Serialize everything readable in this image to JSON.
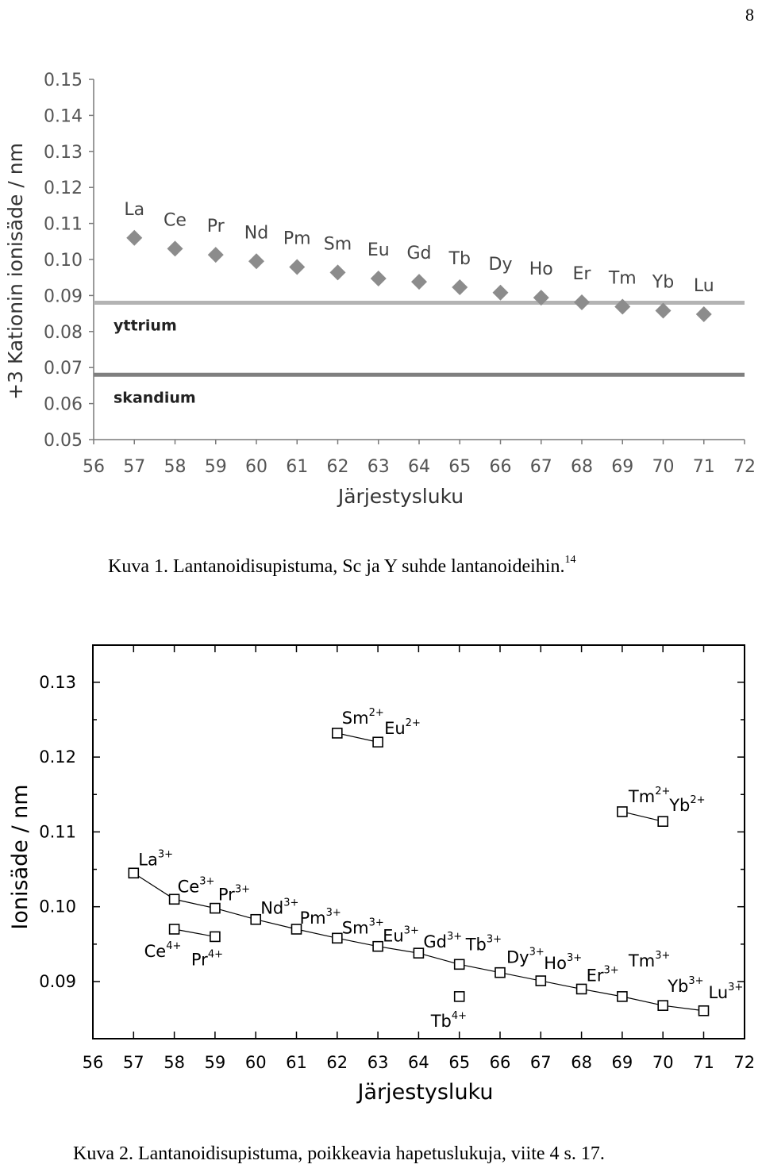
{
  "page_number": "8",
  "figure1": {
    "caption": "Kuva 1. Lantanoidisupistuma, Sc ja Y suhde lantanoideihin.",
    "caption_ref": "14"
  },
  "figure2": {
    "caption": "Kuva 2. Lantanoidisupistuma, poikkeavia hapetuslukuja, viite 4 s. 17."
  },
  "chart_data": [
    {
      "type": "scatter",
      "xlabel": "Järjestysluku",
      "ylabel": "+3 Kationin ionisäde / nm",
      "xlim": [
        56,
        72
      ],
      "ylim": [
        0.05,
        0.15
      ],
      "x_ticks": [
        "56",
        "57",
        "58",
        "59",
        "60",
        "61",
        "62",
        "63",
        "64",
        "65",
        "66",
        "67",
        "68",
        "69",
        "70",
        "71",
        "72"
      ],
      "y_ticks": [
        "0.05",
        "0.06",
        "0.07",
        "0.08",
        "0.09",
        "0.10",
        "0.11",
        "0.12",
        "0.13",
        "0.14",
        "0.15"
      ],
      "grid": false,
      "marker": "diamond",
      "marker_color": "#8c8c8c",
      "points": [
        {
          "label": "La",
          "x": 57,
          "y": 0.106
        },
        {
          "label": "Ce",
          "x": 58,
          "y": 0.103
        },
        {
          "label": "Pr",
          "x": 59,
          "y": 0.1013
        },
        {
          "label": "Nd",
          "x": 60,
          "y": 0.0995
        },
        {
          "label": "Pm",
          "x": 61,
          "y": 0.0979
        },
        {
          "label": "Sm",
          "x": 62,
          "y": 0.0964
        },
        {
          "label": "Eu",
          "x": 63,
          "y": 0.0947
        },
        {
          "label": "Gd",
          "x": 64,
          "y": 0.0938
        },
        {
          "label": "Tb",
          "x": 65,
          "y": 0.0923
        },
        {
          "label": "Dy",
          "x": 66,
          "y": 0.0908
        },
        {
          "label": "Ho",
          "x": 67,
          "y": 0.0894
        },
        {
          "label": "Er",
          "x": 68,
          "y": 0.0881
        },
        {
          "label": "Tm",
          "x": 69,
          "y": 0.0869
        },
        {
          "label": "Yb",
          "x": 70,
          "y": 0.0858
        },
        {
          "label": "Lu",
          "x": 71,
          "y": 0.0848
        }
      ],
      "reference_lines": [
        {
          "label": "yttrium",
          "y": 0.088,
          "color": "#b3b3b3"
        },
        {
          "label": "skandium",
          "y": 0.068,
          "color": "#7f7f7f"
        }
      ]
    },
    {
      "type": "scatter",
      "xlabel": "Järjestysluku",
      "ylabel": "Ionisäde / nm",
      "xlim": [
        56,
        72
      ],
      "ylim": [
        0.083,
        0.135
      ],
      "x_ticks": [
        "56",
        "57",
        "58",
        "59",
        "60",
        "61",
        "62",
        "63",
        "64",
        "65",
        "66",
        "67",
        "68",
        "69",
        "70",
        "71",
        "72"
      ],
      "y_ticks": [
        "0.09",
        "0.10",
        "0.11",
        "0.12",
        "0.13"
      ],
      "grid": false,
      "marker": "open-square",
      "series": [
        {
          "charge": "3+",
          "connected": true,
          "points": [
            {
              "label": "La",
              "x": 57,
              "y": 0.1045
            },
            {
              "label": "Ce",
              "x": 58,
              "y": 0.101
            },
            {
              "label": "Pr",
              "x": 59,
              "y": 0.0998
            },
            {
              "label": "Nd",
              "x": 60,
              "y": 0.0983
            },
            {
              "label": "Pm",
              "x": 61,
              "y": 0.097
            },
            {
              "label": "Sm",
              "x": 62,
              "y": 0.0958
            },
            {
              "label": "Eu",
              "x": 63,
              "y": 0.0947
            },
            {
              "label": "Gd",
              "x": 64,
              "y": 0.0938
            },
            {
              "label": "Tb",
              "x": 65,
              "y": 0.0923
            },
            {
              "label": "Dy",
              "x": 66,
              "y": 0.0912
            },
            {
              "label": "Ho",
              "x": 67,
              "y": 0.0901
            },
            {
              "label": "Er",
              "x": 68,
              "y": 0.089
            },
            {
              "label": "Tm",
              "x": 69,
              "y": 0.088
            },
            {
              "label": "Yb",
              "x": 70,
              "y": 0.0868
            },
            {
              "label": "Lu",
              "x": 71,
              "y": 0.0861
            }
          ]
        },
        {
          "charge": "2+",
          "connected": true,
          "points": [
            {
              "label": "Sm",
              "x": 62,
              "y": 0.1232
            },
            {
              "label": "Eu",
              "x": 63,
              "y": 0.122
            }
          ]
        },
        {
          "charge": "2+",
          "connected": true,
          "points": [
            {
              "label": "Tm",
              "x": 69,
              "y": 0.1127
            },
            {
              "label": "Yb",
              "x": 70,
              "y": 0.1114
            }
          ]
        },
        {
          "charge": "4+",
          "connected": true,
          "points": [
            {
              "label": "Ce",
              "x": 58,
              "y": 0.097
            },
            {
              "label": "Pr",
              "x": 59,
              "y": 0.096
            }
          ]
        },
        {
          "charge": "4+",
          "connected": false,
          "points": [
            {
              "label": "Tb",
              "x": 65,
              "y": 0.088
            }
          ]
        }
      ]
    }
  ]
}
